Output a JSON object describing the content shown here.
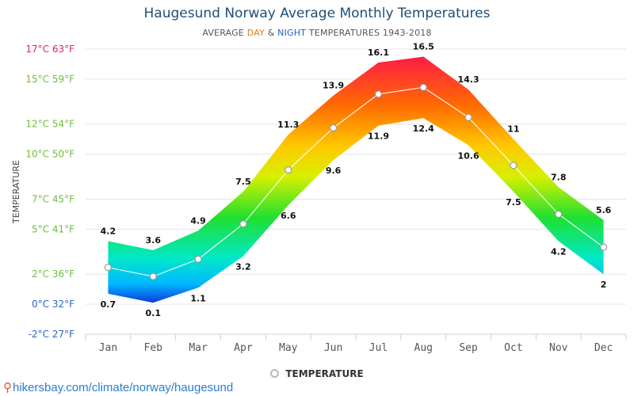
{
  "chart_data": {
    "type": "area",
    "title": "Haugesund Norway Average Monthly Temperatures",
    "subtitle": {
      "prefix": "AVERAGE ",
      "day": "DAY",
      "middle": " & ",
      "night": "NIGHT",
      "suffix": " TEMPERATURES 1943-2018"
    },
    "ylabel": "TEMPERATURE",
    "ylim": [
      -2,
      17
    ],
    "yticks": [
      {
        "value": 17,
        "label": "17°C 63°F",
        "color": "#e3245b"
      },
      {
        "value": 15,
        "label": "15°C 59°F",
        "color": "#6cbf3a"
      },
      {
        "value": 12,
        "label": "12°C 54°F",
        "color": "#6cbf3a"
      },
      {
        "value": 10,
        "label": "10°C 50°F",
        "color": "#6cbf3a"
      },
      {
        "value": 7,
        "label": "7°C 45°F",
        "color": "#6cbf3a"
      },
      {
        "value": 5,
        "label": "5°C 41°F",
        "color": "#6cbf3a"
      },
      {
        "value": 2,
        "label": "2°C 36°F",
        "color": "#6cbf3a"
      },
      {
        "value": 0,
        "label": "0°C 32°F",
        "color": "#2a64c6"
      },
      {
        "value": -2,
        "label": "-2°C 27°F",
        "color": "#2a64c6"
      }
    ],
    "categories": [
      "Jan",
      "Feb",
      "Mar",
      "Apr",
      "May",
      "Jun",
      "Jul",
      "Aug",
      "Sep",
      "Oct",
      "Nov",
      "Dec"
    ],
    "series": [
      {
        "name": "Day",
        "values": [
          4.2,
          3.6,
          4.9,
          7.5,
          11.3,
          13.9,
          16.1,
          16.5,
          14.3,
          11,
          7.8,
          5.6
        ]
      },
      {
        "name": "Night",
        "values": [
          0.7,
          0.1,
          1.1,
          3.2,
          6.6,
          9.6,
          11.9,
          12.4,
          10.6,
          7.5,
          4.2,
          2
        ]
      },
      {
        "name": "TEMPERATURE",
        "values": [
          2.45,
          1.85,
          3.0,
          5.35,
          8.95,
          11.75,
          14.0,
          14.45,
          12.45,
          9.25,
          6.0,
          3.8
        ]
      }
    ],
    "legend": [
      "TEMPERATURE"
    ],
    "grid": true
  },
  "source": "hikersbay.com/climate/norway/haugesund"
}
